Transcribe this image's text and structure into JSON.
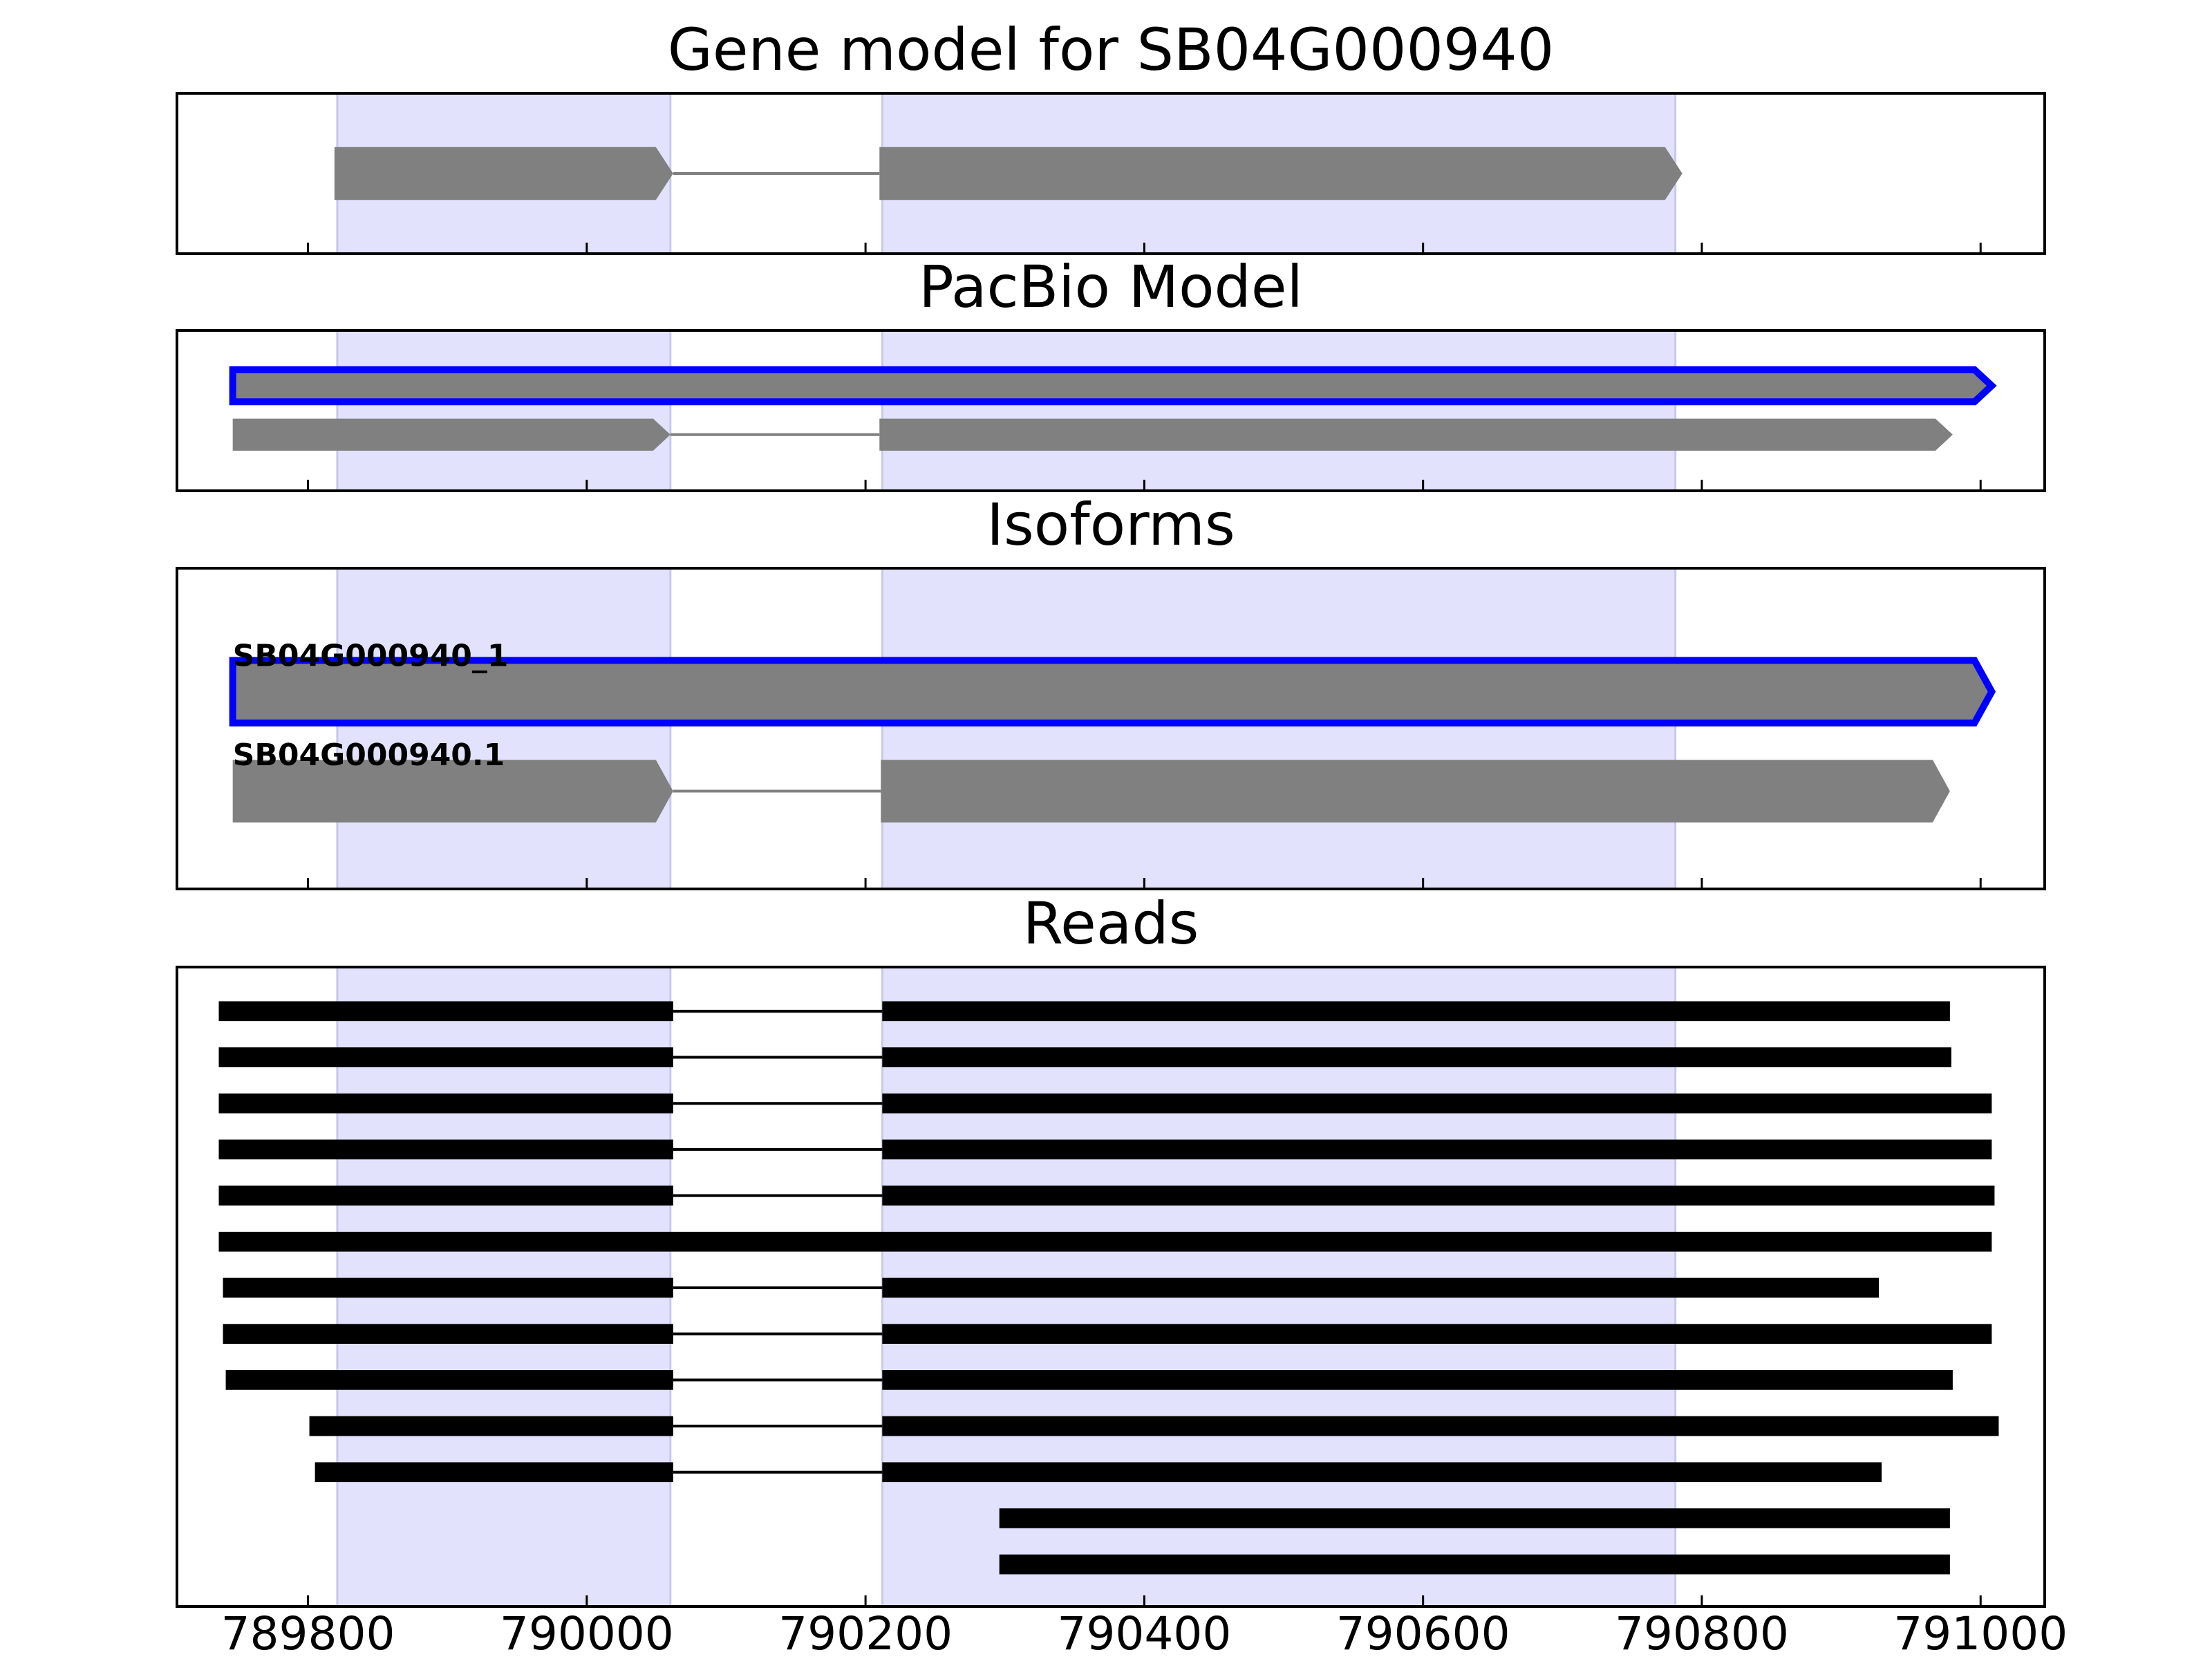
{
  "chart_data": {
    "type": "gene-tracks",
    "xlim": [
      789706,
      791046
    ],
    "xticks": [
      789800,
      790000,
      790200,
      790400,
      790600,
      790800,
      791000
    ],
    "regions": [
      [
        789821,
        790060
      ],
      [
        790212,
        790781
      ]
    ],
    "region_color": "#e2e2fc",
    "panels": [
      {
        "title": "Gene model for SB04G000940",
        "style": "model",
        "color": "#808080",
        "tracks": [
          {
            "exons": [
              [
                789819,
                790062
              ],
              [
                790210,
                790786
              ]
            ]
          }
        ]
      },
      {
        "title": "PacBio Model",
        "style": "model",
        "color": "#808080",
        "tracks": [
          {
            "exons": [
              [
                789746,
                791008
              ]
            ],
            "edgecolor": "#0000ff"
          },
          {
            "exons": [
              [
                789746,
                790060
              ],
              [
                790210,
                790980
              ]
            ]
          }
        ]
      },
      {
        "title": "Isoforms",
        "style": "model",
        "color": "#808080",
        "tracks": [
          {
            "name": "SB04G000940_1",
            "exons": [
              [
                789746,
                791008
              ]
            ],
            "edgecolor": "#0000ff"
          },
          {
            "name": "SB04G000940.1",
            "exons": [
              [
                789746,
                790062
              ],
              [
                790211,
                790978
              ]
            ]
          }
        ]
      },
      {
        "title": "Reads",
        "style": "reads",
        "color": "#000000",
        "tracks": [
          {
            "exons": [
              [
                789736,
                790062
              ],
              [
                790212,
                790978
              ]
            ]
          },
          {
            "exons": [
              [
                789736,
                790062
              ],
              [
                790212,
                790979
              ]
            ]
          },
          {
            "exons": [
              [
                789736,
                790062
              ],
              [
                790212,
                791008
              ]
            ]
          },
          {
            "exons": [
              [
                789736,
                790062
              ],
              [
                790212,
                791008
              ]
            ]
          },
          {
            "exons": [
              [
                789736,
                790062
              ],
              [
                790212,
                791010
              ]
            ]
          },
          {
            "exons": [
              [
                789736,
                791008
              ]
            ]
          },
          {
            "exons": [
              [
                789739,
                790062
              ],
              [
                790212,
                790927
              ]
            ]
          },
          {
            "exons": [
              [
                789739,
                790062
              ],
              [
                790212,
                791008
              ]
            ]
          },
          {
            "exons": [
              [
                789741,
                790062
              ],
              [
                790212,
                790980
              ]
            ]
          },
          {
            "exons": [
              [
                789801,
                790062
              ],
              [
                790212,
                791013
              ]
            ]
          },
          {
            "exons": [
              [
                789805,
                790062
              ],
              [
                790212,
                790929
              ]
            ]
          },
          {
            "exons": [
              [
                790296,
                790978
              ]
            ]
          },
          {
            "exons": [
              [
                790296,
                790978
              ]
            ]
          }
        ]
      }
    ]
  }
}
